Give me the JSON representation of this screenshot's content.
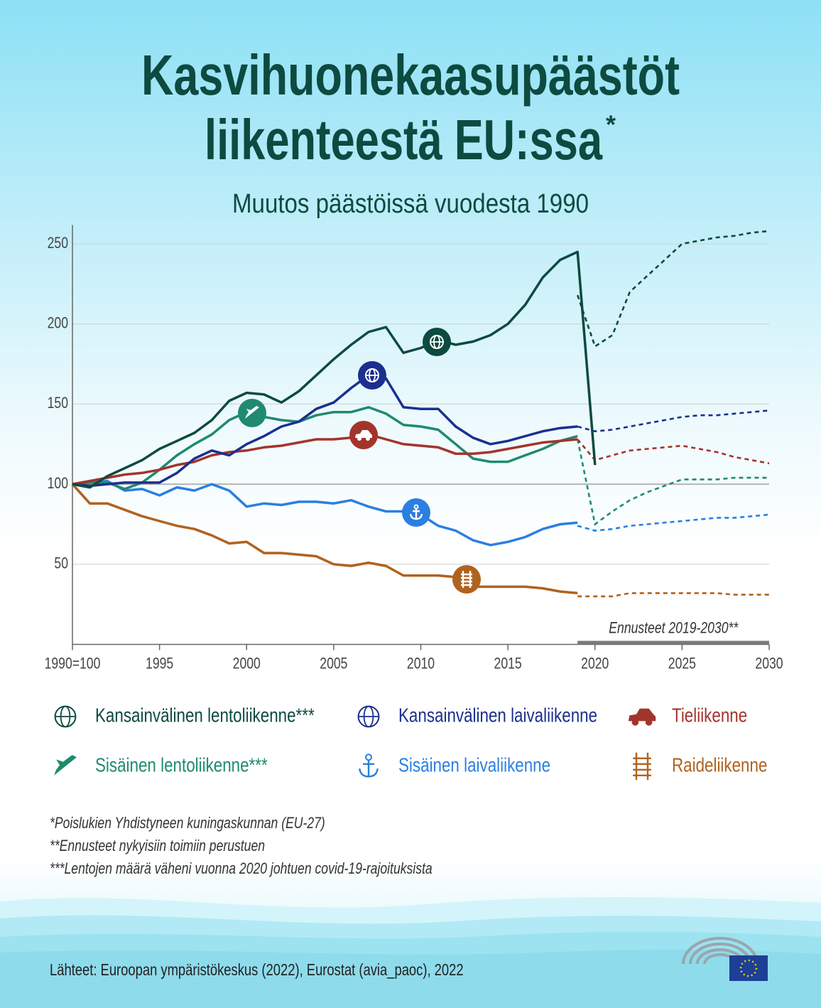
{
  "chart_data": {
    "type": "line",
    "title": [
      "Kasvihuonekaasupäästöt",
      "liikenteestä EU:ssa"
    ],
    "title_mark": "*",
    "subtitle": "Muutos päästöissä vuodesta 1990",
    "x": [
      1990,
      1991,
      1992,
      1993,
      1994,
      1995,
      1996,
      1997,
      1998,
      1999,
      2000,
      2001,
      2002,
      2003,
      2004,
      2005,
      2006,
      2007,
      2008,
      2009,
      2010,
      2011,
      2012,
      2013,
      2014,
      2015,
      2016,
      2017,
      2018,
      2019,
      2020,
      2021,
      2022,
      2023,
      2024,
      2025,
      2026,
      2027,
      2028,
      2029,
      2030
    ],
    "xlim": [
      1990,
      2030
    ],
    "xticks": [
      {
        "value": 1990,
        "label": "1990=100"
      },
      1995,
      2000,
      2005,
      2010,
      2015,
      2020,
      2025,
      2030
    ],
    "ylim": [
      0,
      260
    ],
    "yticks": [
      50,
      100,
      150,
      200,
      250
    ],
    "grid": true,
    "series": [
      {
        "name": "Kansainvälinen lentoliikenne***",
        "color": "#0d4a40",
        "values": [
          100,
          98,
          105,
          110,
          115,
          122,
          127,
          132,
          140,
          152,
          157,
          156,
          151,
          158,
          168,
          178,
          187,
          195,
          198,
          182,
          185,
          190,
          187,
          189,
          193,
          200,
          212,
          229,
          240,
          245,
          112,
          null,
          null,
          null,
          null,
          null,
          null,
          null,
          null,
          null,
          null
        ],
        "projection": [
          null,
          null,
          null,
          null,
          null,
          null,
          null,
          null,
          null,
          null,
          null,
          null,
          null,
          null,
          null,
          null,
          null,
          null,
          null,
          null,
          null,
          null,
          null,
          null,
          null,
          null,
          null,
          null,
          null,
          218,
          186,
          193,
          220,
          230,
          240,
          250,
          252,
          254,
          255,
          257,
          258
        ]
      },
      {
        "name": "Kansainvälinen laivaliikenne",
        "color": "#1b2f8e",
        "values": [
          100,
          99,
          100,
          101,
          101,
          101,
          107,
          116,
          121,
          118,
          125,
          130,
          136,
          139,
          147,
          151,
          160,
          168,
          166,
          148,
          147,
          147,
          136,
          129,
          125,
          127,
          130,
          133,
          135,
          136,
          null,
          null,
          null,
          null,
          null,
          null,
          null,
          null,
          null,
          null,
          null
        ],
        "projection": [
          null,
          null,
          null,
          null,
          null,
          null,
          null,
          null,
          null,
          null,
          null,
          null,
          null,
          null,
          null,
          null,
          null,
          null,
          null,
          null,
          null,
          null,
          null,
          null,
          null,
          null,
          null,
          null,
          null,
          136,
          133,
          134,
          136,
          138,
          140,
          142,
          143,
          143,
          144,
          145,
          146
        ]
      },
      {
        "name": "Tieliikenne",
        "color": "#a3342c",
        "values": [
          100,
          102,
          104,
          106,
          107,
          109,
          112,
          114,
          118,
          120,
          121,
          123,
          124,
          126,
          128,
          128,
          129,
          131,
          128,
          125,
          124,
          123,
          119,
          119,
          120,
          122,
          124,
          126,
          127,
          128,
          null,
          null,
          null,
          null,
          null,
          null,
          null,
          null,
          null,
          null,
          null
        ],
        "projection": [
          null,
          null,
          null,
          null,
          null,
          null,
          null,
          null,
          null,
          null,
          null,
          null,
          null,
          null,
          null,
          null,
          null,
          null,
          null,
          null,
          null,
          null,
          null,
          null,
          null,
          null,
          null,
          null,
          null,
          128,
          115,
          118,
          121,
          122,
          123,
          124,
          122,
          120,
          117,
          115,
          113
        ]
      },
      {
        "name": "Sisäinen lentoliikenne***",
        "color": "#1f8a70",
        "values": [
          100,
          101,
          101,
          97,
          101,
          109,
          118,
          125,
          131,
          140,
          145,
          142,
          140,
          139,
          143,
          145,
          145,
          148,
          144,
          137,
          136,
          134,
          125,
          116,
          114,
          114,
          118,
          122,
          127,
          130,
          null,
          null,
          null,
          null,
          null,
          null,
          null,
          null,
          null,
          null,
          null
        ],
        "projection": [
          null,
          null,
          null,
          null,
          null,
          null,
          null,
          null,
          null,
          null,
          null,
          null,
          null,
          null,
          null,
          null,
          null,
          null,
          null,
          null,
          null,
          null,
          null,
          null,
          null,
          null,
          null,
          null,
          null,
          128,
          75,
          83,
          90,
          95,
          99,
          103,
          103,
          103,
          104,
          104,
          104
        ]
      },
      {
        "name": "Sisäinen laivaliikenne",
        "color": "#2b7fe0",
        "values": [
          100,
          101,
          102,
          96,
          97,
          93,
          98,
          96,
          100,
          96,
          86,
          88,
          87,
          89,
          89,
          88,
          90,
          86,
          83,
          83,
          81,
          74,
          71,
          65,
          62,
          64,
          67,
          72,
          75,
          76,
          null,
          null,
          null,
          null,
          null,
          null,
          null,
          null,
          null,
          null,
          null
        ],
        "projection": [
          null,
          null,
          null,
          null,
          null,
          null,
          null,
          null,
          null,
          null,
          null,
          null,
          null,
          null,
          null,
          null,
          null,
          null,
          null,
          null,
          null,
          null,
          null,
          null,
          null,
          null,
          null,
          null,
          null,
          74,
          71,
          72,
          74,
          75,
          76,
          77,
          78,
          79,
          79,
          80,
          81
        ]
      },
      {
        "name": "Raideliikenne",
        "color": "#b0621f",
        "values": [
          100,
          88,
          88,
          84,
          80,
          77,
          74,
          72,
          68,
          63,
          64,
          57,
          57,
          56,
          55,
          50,
          49,
          51,
          49,
          43,
          43,
          43,
          42,
          36,
          36,
          36,
          36,
          35,
          33,
          32,
          null,
          null,
          null,
          null,
          null,
          null,
          null,
          null,
          null,
          null,
          null
        ],
        "projection": [
          null,
          null,
          null,
          null,
          null,
          null,
          null,
          null,
          null,
          null,
          null,
          null,
          null,
          null,
          null,
          null,
          null,
          null,
          null,
          null,
          null,
          null,
          null,
          null,
          null,
          null,
          null,
          null,
          null,
          30,
          30,
          30,
          32,
          32,
          32,
          32,
          32,
          32,
          31,
          31,
          31
        ]
      }
    ],
    "forecast": {
      "text": "Ennusteet 2019-2030**",
      "x_range": [
        2019,
        2030
      ]
    },
    "notes": [
      "*Poislukien Yhdistyneen kuningaskunnan (EU-27)",
      "**Ennusteet nykyisiin toimiin perustuen",
      "***Lentojen määrä väheni vuonna 2020 johtuen covid-19-rajoituksista"
    ],
    "source": "Lähteet: Euroopan ympäristökeskus (2022), Eurostat (avia_paoc), 2022"
  }
}
